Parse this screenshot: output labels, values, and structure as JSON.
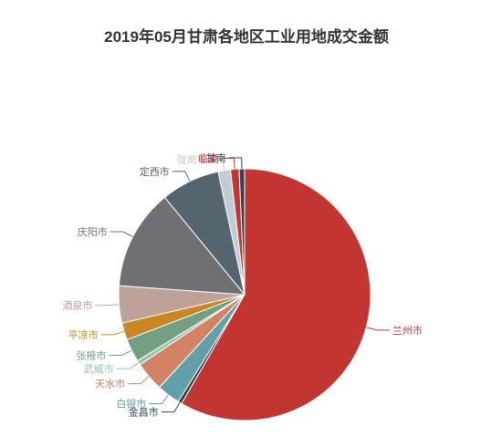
{
  "chart_data": {
    "type": "pie",
    "title": "2019年05月甘肃各地区工业用地成交金额",
    "legend": "none",
    "slices": [
      {
        "name": "兰州市",
        "value": 58.7,
        "color": "#c23531"
      },
      {
        "name": "金昌市",
        "value": 0.5,
        "color": "#2f4554"
      },
      {
        "name": "白银市",
        "value": 3.0,
        "color": "#61a0a8"
      },
      {
        "name": "天水市",
        "value": 3.8,
        "color": "#d48265"
      },
      {
        "name": "武威市",
        "value": 0.6,
        "color": "#91c7ae"
      },
      {
        "name": "张掖市",
        "value": 3.0,
        "color": "#749f83"
      },
      {
        "name": "平凉市",
        "value": 2.2,
        "color": "#ca8622"
      },
      {
        "name": "酒泉市",
        "value": 4.8,
        "color": "#bda29a"
      },
      {
        "name": "庆阳市",
        "value": 13.0,
        "color": "#6e7074"
      },
      {
        "name": "定西市",
        "value": 7.6,
        "color": "#546570"
      },
      {
        "name": "陇南市",
        "value": 1.6,
        "color": "#c4ccd3"
      },
      {
        "name": "临夏",
        "value": 1.1,
        "color": "#c23531"
      },
      {
        "name": "甘南",
        "value": 0.7,
        "color": "#2f4554"
      }
    ]
  }
}
